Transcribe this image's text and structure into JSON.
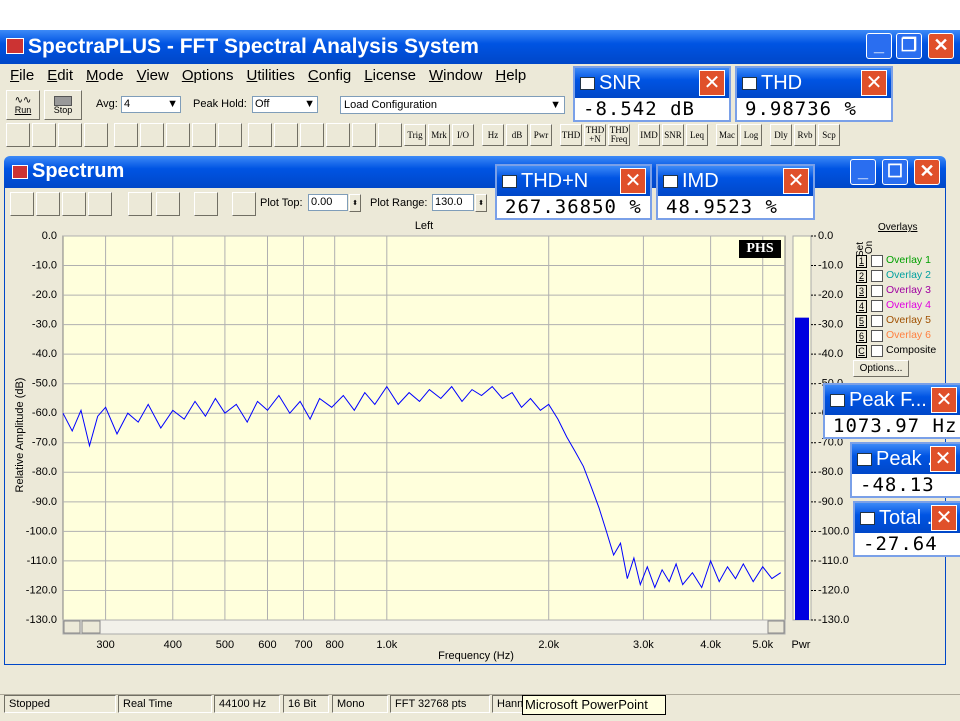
{
  "window": {
    "title": "SpectraPLUS - FFT Spectral Analysis System"
  },
  "menu": [
    "File",
    "Edit",
    "Mode",
    "View",
    "Options",
    "Utilities",
    "Config",
    "License",
    "Window",
    "Help"
  ],
  "toolbar": {
    "run": "Run",
    "stop": "Stop",
    "avg_label": "Avg:",
    "avg_value": "4",
    "peak_hold_label": "Peak Hold:",
    "peak_hold_value": "Off",
    "config": "Load Configuration"
  },
  "toolbar_buttons": [
    "Trig",
    "Mrk",
    "I/O",
    "Hz",
    "dB",
    "Pwr",
    "THD",
    "THD +N",
    "THD Freq",
    "IMD",
    "SNR",
    "Leq",
    "Mac",
    "Log",
    "Dly",
    "Rvb",
    "Scp"
  ],
  "spectrum": {
    "title": "Spectrum",
    "plot_top_label": "Plot Top:",
    "plot_top_value": "0.00",
    "plot_range_label": "Plot Range:",
    "plot_range_value": "130.0"
  },
  "chart_data": {
    "type": "line",
    "title": "Left",
    "xlabel": "Frequency (Hz)",
    "ylabel": "Relative Amplitude (dB)",
    "badge": "PHS",
    "meter_label": "Pwr",
    "log_x": true,
    "grid": true,
    "xlim": [
      250,
      5500
    ],
    "ylim": [
      -130,
      0
    ],
    "xticks": [
      300,
      400,
      500,
      600,
      700,
      800,
      {
        "value": 1000,
        "label": "1.0k"
      },
      {
        "value": 2000,
        "label": "2.0k"
      },
      {
        "value": 3000,
        "label": "3.0k"
      },
      {
        "value": 4000,
        "label": "4.0k"
      },
      {
        "value": 5000,
        "label": "5.0k"
      }
    ],
    "yticks": [
      {
        "value": 0,
        "label": "0.0"
      },
      {
        "value": -10,
        "label": "-10.0"
      },
      {
        "value": -20,
        "label": "-20.0"
      },
      {
        "value": -30,
        "label": "-30.0"
      },
      {
        "value": -40,
        "label": "-40.0"
      },
      {
        "value": -50,
        "label": "-50.0"
      },
      {
        "value": -60,
        "label": "-60.0"
      },
      {
        "value": -70,
        "label": "-70.0"
      },
      {
        "value": -80,
        "label": "-80.0"
      },
      {
        "value": -90,
        "label": "-90.0"
      },
      {
        "value": -100,
        "label": "-100.0"
      },
      {
        "value": -110,
        "label": "-110.0"
      },
      {
        "value": -120,
        "label": "-120.0"
      },
      {
        "value": -130,
        "label": "-130.0"
      }
    ],
    "x": [
      250,
      260,
      270,
      280,
      290,
      300,
      315,
      330,
      345,
      360,
      380,
      400,
      420,
      440,
      460,
      480,
      500,
      525,
      550,
      575,
      600,
      630,
      660,
      690,
      720,
      750,
      790,
      830,
      870,
      910,
      950,
      1000,
      1050,
      1100,
      1150,
      1200,
      1260,
      1320,
      1380,
      1440,
      1500,
      1570,
      1640,
      1710,
      1780,
      1850,
      1930,
      2000,
      2080,
      2160,
      2240,
      2320,
      2400,
      2480,
      2560,
      2640,
      2720,
      2800,
      2880,
      2960,
      3050,
      3150,
      3250,
      3350,
      3450,
      3550,
      3700,
      3850,
      4000,
      4150,
      4300,
      4450,
      4600,
      4800,
      5000,
      5200,
      5400
    ],
    "series": [
      {
        "color": "#0000ff",
        "values": [
          -60,
          -66,
          -59,
          -71,
          -61,
          -58,
          -67,
          -60,
          -63,
          -57,
          -65,
          -59,
          -62,
          -56,
          -61,
          -55,
          -60,
          -57,
          -63,
          -56,
          -59,
          -54,
          -60,
          -56,
          -62,
          -55,
          -58,
          -54,
          -59,
          -53,
          -57,
          -51,
          -57,
          -53,
          -56,
          -52,
          -55,
          -51,
          -56,
          -52,
          -54,
          -51,
          -55,
          -53,
          -58,
          -55,
          -59,
          -57,
          -62,
          -68,
          -73,
          -78,
          -85,
          -92,
          -100,
          -108,
          -104,
          -116,
          -109,
          -118,
          -112,
          -119,
          -113,
          -117,
          -111,
          -118,
          -114,
          -119,
          -110,
          -117,
          -112,
          -116,
          -111,
          -117,
          -112,
          -116,
          -114
        ]
      }
    ]
  },
  "overlays": {
    "title": "Overlays",
    "set": "Set",
    "on": "On",
    "options": "Options...",
    "items": [
      {
        "key": "1",
        "name": "Overlay 1",
        "color": "#00a000"
      },
      {
        "key": "2",
        "name": "Overlay 2",
        "color": "#00a0a0"
      },
      {
        "key": "3",
        "name": "Overlay 3",
        "color": "#a000a0"
      },
      {
        "key": "4",
        "name": "Overlay 4",
        "color": "#e000e0"
      },
      {
        "key": "5",
        "name": "Overlay 5",
        "color": "#a05000"
      },
      {
        "key": "6",
        "name": "Overlay 6",
        "color": "#ff8040"
      },
      {
        "key": "C",
        "name": "Composite",
        "color": "#000000"
      }
    ]
  },
  "readouts": [
    {
      "title": "SNR",
      "value": "-8.542 dB"
    },
    {
      "title": "THD",
      "value": "9.98736 %"
    },
    {
      "title": "THD+N",
      "value": "267.36850 %"
    },
    {
      "title": "IMD",
      "value": "48.9523 %"
    },
    {
      "title": "Peak F...",
      "value": "1073.97 Hz"
    },
    {
      "title": "Peak ...",
      "value": -48.13
    },
    {
      "title": "Total ...",
      "value": -27.64
    }
  ],
  "status": [
    "Stopped",
    "Real Time",
    "44100 Hz",
    "16 Bit",
    "Mono",
    "FFT 32768 pts",
    "Hanning"
  ],
  "tooltip": "Microsoft PowerPoint"
}
